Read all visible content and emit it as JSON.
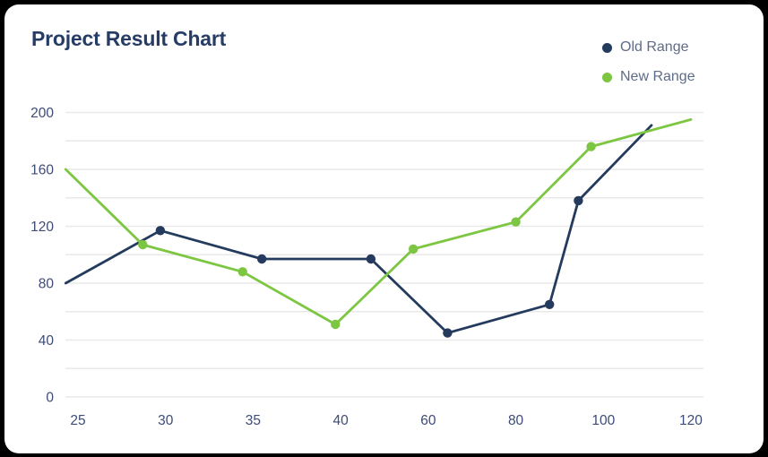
{
  "page": {
    "background_color": "#000000",
    "card_background_color": "#ffffff"
  },
  "header": {
    "title": "Project Result Chart",
    "title_color": "#263C66"
  },
  "legend": {
    "position": "top-right",
    "text_color": "#5F6C88",
    "items": [
      {
        "label": "Old Range",
        "color": "#243B5E"
      },
      {
        "label": "New Range",
        "color": "#7DC642"
      }
    ]
  },
  "chart_data": {
    "type": "line",
    "title": "Project Result Chart",
    "xlabel": "",
    "ylabel": "",
    "grid": true,
    "grid_color": "#E9E9E9",
    "axis_label_color": "#3D4B76",
    "x_ticks": [
      25,
      30,
      35,
      40,
      60,
      80,
      100,
      120
    ],
    "x_tick_spacing": "even",
    "y_ticks_labeled": [
      0,
      40,
      80,
      120,
      160,
      200
    ],
    "y_gridline_step": 20,
    "ylim": [
      0,
      200
    ],
    "legend_position": "top-right",
    "series": [
      {
        "name": "Old Range",
        "color": "#243B5E",
        "points": [
          {
            "x": 24.3,
            "y": 80
          },
          {
            "x": 29.7,
            "y": 117
          },
          {
            "x": 35.5,
            "y": 97
          },
          {
            "x": 46.9,
            "y": 97
          },
          {
            "x": 64.4,
            "y": 45
          },
          {
            "x": 87.7,
            "y": 65
          },
          {
            "x": 94.3,
            "y": 138
          },
          {
            "x": 111.0,
            "y": 191
          }
        ],
        "marker_indices": [
          1,
          2,
          3,
          4,
          5,
          6
        ]
      },
      {
        "name": "New Range",
        "color": "#7DC642",
        "points": [
          {
            "x": 24.3,
            "y": 160
          },
          {
            "x": 28.7,
            "y": 107
          },
          {
            "x": 34.4,
            "y": 88
          },
          {
            "x": 39.7,
            "y": 51
          },
          {
            "x": 56.6,
            "y": 104
          },
          {
            "x": 80.0,
            "y": 123
          },
          {
            "x": 97.2,
            "y": 176
          },
          {
            "x": 120.0,
            "y": 195
          }
        ],
        "marker_indices": [
          1,
          2,
          3,
          4,
          5,
          6
        ]
      }
    ]
  }
}
